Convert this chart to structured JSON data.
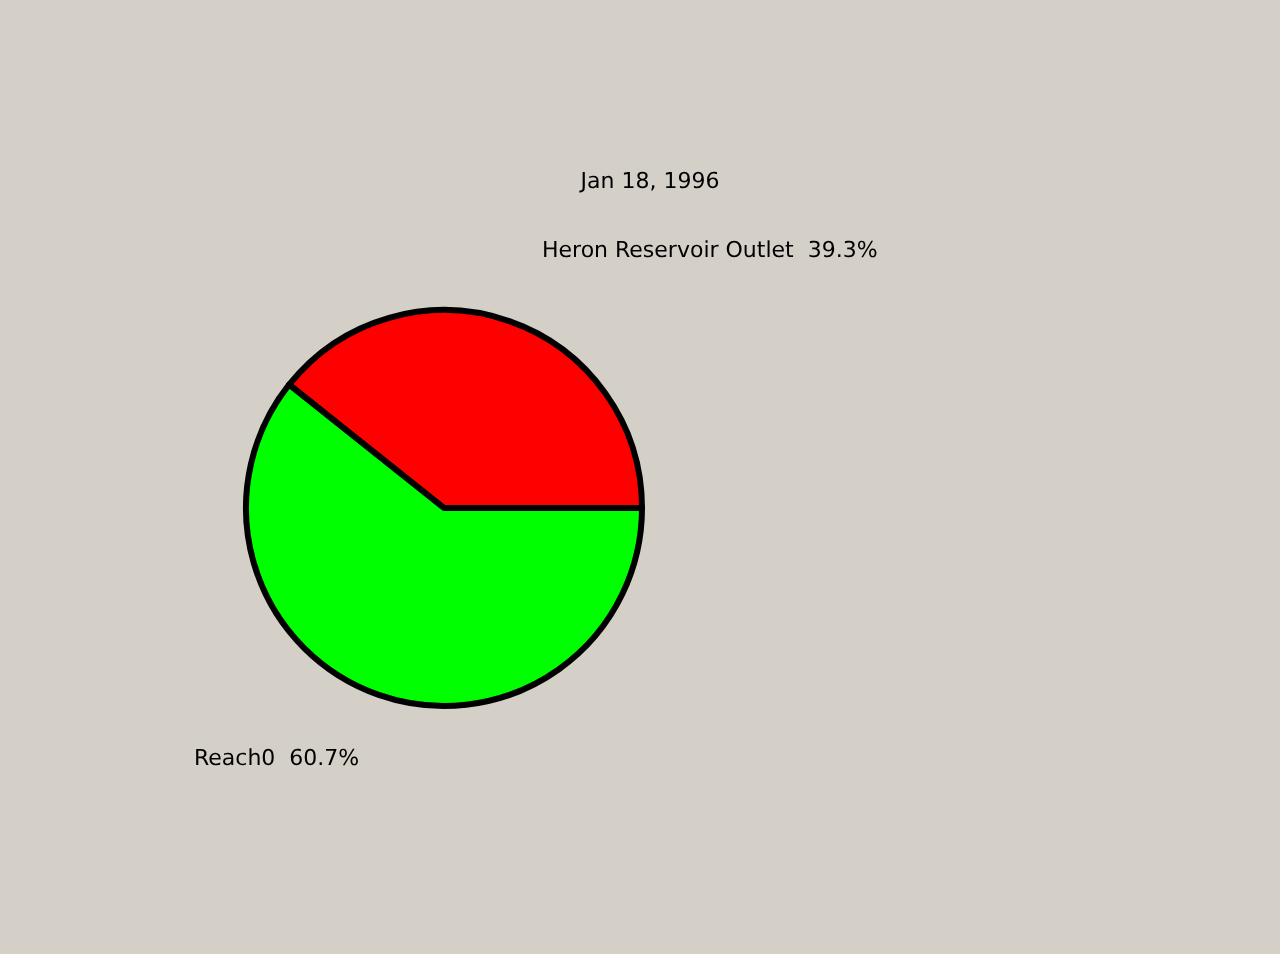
{
  "chart_data": {
    "type": "pie",
    "title": "Jan 18, 1996",
    "categories": [
      "Heron Reservoir Outlet  39.3%",
      "Reach0  60.7%"
    ],
    "values": [
      39.3,
      60.7
    ],
    "colors": [
      "#ff0000",
      "#00ff00"
    ],
    "legend": false
  }
}
